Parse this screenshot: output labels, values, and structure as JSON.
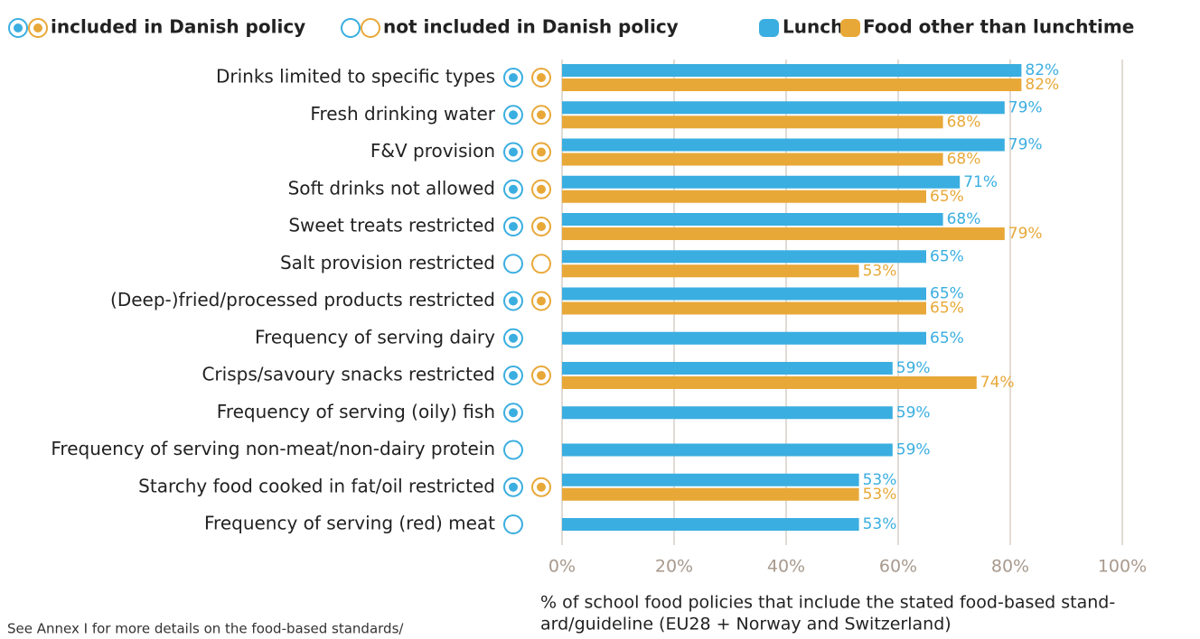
{
  "chart_data": {
    "type": "bar",
    "orientation": "horizontal",
    "legend_included": "included in Danish policy",
    "legend_not_included": "not included in Danish policy",
    "categories": [
      "Drinks limited to specific types",
      "Fresh drinking water",
      "F&V provision",
      "Soft drinks not allowed",
      "Sweet treats restricted",
      "Salt provision restricted",
      "(Deep-)fried/processed products restricted",
      "Frequency of serving dairy",
      "Crisps/savoury snacks restricted",
      "Frequency of serving (oily) fish",
      "Frequency of serving non-meat/non-dairy protein",
      "Starchy food cooked in fat/oil restricted",
      "Frequency of serving (red) meat"
    ],
    "series": [
      {
        "name": "Lunch",
        "color": "#3aaee0",
        "values": [
          82,
          79,
          79,
          71,
          68,
          65,
          65,
          65,
          59,
          59,
          59,
          53,
          53
        ],
        "value_labels": [
          "82%",
          "79%",
          "79%",
          "71%",
          "68%",
          "65%",
          "65%",
          "65%",
          "59%",
          "59%",
          "59%",
          "53%",
          "53%"
        ],
        "included": [
          true,
          true,
          true,
          true,
          true,
          false,
          true,
          true,
          true,
          true,
          false,
          true,
          false
        ]
      },
      {
        "name": "Food other than lunchtime",
        "color": "#e8a838",
        "values": [
          82,
          68,
          68,
          65,
          79,
          53,
          65,
          null,
          74,
          null,
          null,
          53,
          null
        ],
        "value_labels": [
          "82%",
          "68%",
          "68%",
          "65%",
          "79%",
          "53%",
          "65%",
          null,
          "74%",
          null,
          null,
          "53%",
          null
        ],
        "included": [
          true,
          true,
          true,
          true,
          true,
          false,
          true,
          null,
          true,
          null,
          null,
          true,
          null
        ]
      }
    ],
    "xlim": [
      0,
      100
    ],
    "xticks": [
      {
        "value": 0,
        "label": "0%"
      },
      {
        "value": 20,
        "label": "20%"
      },
      {
        "value": 40,
        "label": "40%"
      },
      {
        "value": 60,
        "label": "60%"
      },
      {
        "value": 80,
        "label": "80%"
      },
      {
        "value": 100,
        "label": "100%"
      }
    ],
    "grid": true,
    "x_label_lines": [
      "% of school food policies that include the stated food-based stand-",
      "ard/guideline (EU28 + Norway and Switzerland)"
    ],
    "note": "See Annex I for more details on the food-based standards/"
  }
}
